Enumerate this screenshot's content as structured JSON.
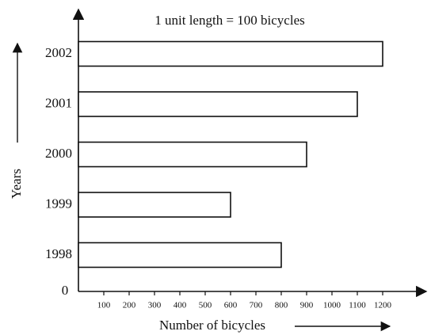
{
  "chart_data": {
    "type": "bar",
    "orientation": "horizontal",
    "title": "1 unit length = 100 bicycles",
    "ylabel": "Years",
    "xlabel": "Number of bicycles",
    "categories": [
      "1998",
      "1999",
      "2000",
      "2001",
      "2002"
    ],
    "values": [
      800,
      600,
      900,
      1100,
      1200
    ],
    "color": "#ffffff",
    "xlim": [
      0,
      1300
    ],
    "xticks": [
      0,
      100,
      200,
      300,
      400,
      500,
      600,
      700,
      800,
      900,
      1000,
      1100,
      1200
    ],
    "grid": false
  }
}
